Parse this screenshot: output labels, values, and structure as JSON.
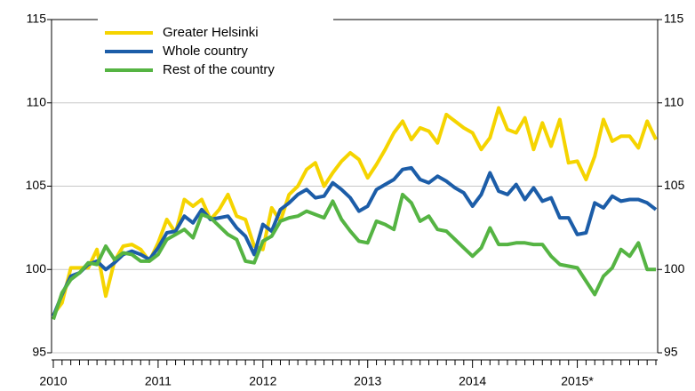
{
  "chart_data": {
    "type": "line",
    "categories": [
      "2010",
      null,
      null,
      null,
      null,
      null,
      null,
      null,
      null,
      null,
      null,
      null,
      "2011",
      null,
      null,
      null,
      null,
      null,
      null,
      null,
      null,
      null,
      null,
      null,
      "2012",
      null,
      null,
      null,
      null,
      null,
      null,
      null,
      null,
      null,
      null,
      null,
      "2013",
      null,
      null,
      null,
      null,
      null,
      null,
      null,
      null,
      null,
      null,
      null,
      "2014",
      null,
      null,
      null,
      null,
      null,
      null,
      null,
      null,
      null,
      null,
      null,
      "2015*",
      null,
      null,
      null,
      null,
      null,
      null,
      null,
      null,
      null
    ],
    "series": [
      {
        "name": "Greater Helsinki",
        "color": "#f5d400",
        "values": [
          97.3,
          98,
          100.1,
          100.1,
          100.1,
          101.2,
          98.4,
          100.5,
          101.4,
          101.5,
          101.2,
          100.5,
          101.6,
          103.0,
          102.2,
          104.2,
          103.8,
          104.2,
          103.0,
          103.6,
          104.5,
          103.2,
          103.0,
          101.4,
          101.2,
          103.7,
          102.9,
          104.5,
          105.0,
          106.0,
          106.4,
          105.0,
          105.8,
          106.5,
          107.0,
          106.6,
          105.5,
          106.3,
          107.2,
          108.2,
          108.9,
          107.8,
          108.5,
          108.3,
          107.6,
          109.3,
          108.9,
          108.5,
          108.2,
          107.2,
          107.9,
          109.7,
          108.4,
          108.2,
          109.1,
          107.2,
          108.8,
          107.4,
          109.0,
          106.4,
          106.5,
          105.4,
          106.8,
          109.0,
          107.7,
          108.0,
          108.0,
          107.3,
          108.9,
          107.8
        ]
      },
      {
        "name": "Whole country",
        "color": "#1c5da8",
        "values": [
          97.2,
          98.5,
          99.6,
          99.8,
          100.3,
          100.5,
          100.0,
          100.4,
          100.9,
          101.1,
          100.9,
          100.6,
          101.3,
          102.2,
          102.3,
          103.2,
          102.8,
          103.6,
          103.0,
          103.1,
          103.2,
          102.5,
          102.0,
          100.9,
          102.7,
          102.3,
          103.6,
          104.0,
          104.5,
          104.8,
          104.3,
          104.4,
          105.2,
          104.8,
          104.3,
          103.5,
          103.8,
          104.8,
          105.1,
          105.4,
          106.0,
          106.1,
          105.4,
          105.2,
          105.6,
          105.3,
          104.9,
          104.6,
          103.8,
          104.5,
          105.8,
          104.7,
          104.5,
          105.1,
          104.2,
          104.9,
          104.1,
          104.3,
          103.1,
          103.1,
          102.1,
          102.2,
          104.0,
          103.7,
          104.4,
          104.1,
          104.2,
          104.2,
          104.0,
          103.6
        ]
      },
      {
        "name": "Rest of the country",
        "color": "#55b443",
        "values": [
          97.0,
          98.6,
          99.4,
          99.8,
          100.4,
          100.3,
          101.4,
          100.6,
          101.0,
          100.9,
          100.5,
          100.5,
          100.9,
          101.8,
          102.1,
          102.4,
          101.9,
          103.3,
          103.1,
          102.6,
          102.1,
          101.8,
          100.5,
          100.4,
          101.7,
          102.0,
          102.9,
          103.1,
          103.2,
          103.5,
          103.3,
          103.1,
          104.1,
          103.0,
          102.3,
          101.7,
          101.6,
          102.9,
          102.7,
          102.4,
          104.5,
          104.0,
          102.9,
          103.2,
          102.4,
          102.3,
          101.8,
          101.3,
          100.8,
          101.3,
          102.5,
          101.5,
          101.5,
          101.6,
          101.6,
          101.5,
          101.5,
          100.8,
          100.3,
          100.2,
          100.1,
          99.3,
          98.5,
          99.6,
          100.1,
          101.2,
          100.8,
          101.6,
          100.0,
          100.0
        ]
      }
    ],
    "ylim": [
      95,
      115
    ],
    "yticks": [
      95,
      100,
      105,
      110,
      115
    ],
    "y2lim": [
      95,
      115
    ],
    "y2ticks": [
      95,
      100,
      105,
      110,
      115
    ],
    "grid": true,
    "legend": "upper left"
  }
}
